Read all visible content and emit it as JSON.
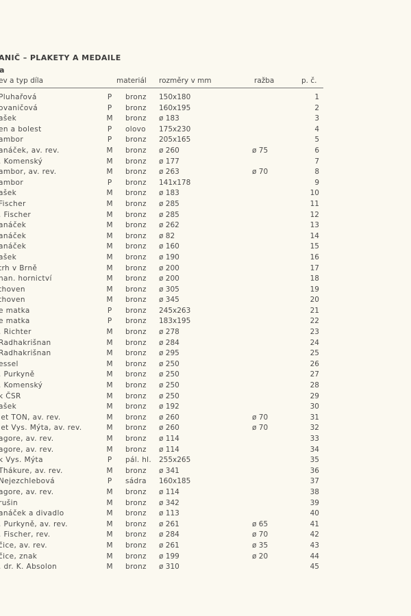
{
  "title": "ANIČ – PLAKETY A MEDAILE",
  "subtitle": "a",
  "header": {
    "name": "ev a typ díla",
    "material": "materiál",
    "dimensions": "rozměry v mm",
    "razba": "ražba",
    "number": "p. č."
  },
  "rows": [
    [
      "Pluhařová",
      "P",
      "bronz",
      "150x180",
      "",
      "1"
    ],
    [
      "ovaničová",
      "P",
      "bronz",
      "160x195",
      "",
      "2"
    ],
    [
      "ašek",
      "M",
      "bronz",
      "ø 183",
      "",
      "3"
    ],
    [
      "en a bolest",
      "P",
      "olovo",
      "175x230",
      "",
      "4"
    ],
    [
      "ambor",
      "P",
      "bronz",
      "205x165",
      "",
      "5"
    ],
    [
      "anáček, av. rev.",
      "M",
      "bronz",
      "ø 260",
      "ø 75",
      "6"
    ],
    [
      ". Komenský",
      "M",
      "bronz",
      "ø 177",
      "",
      "7"
    ],
    [
      "ambor, av. rev.",
      "M",
      "bronz",
      "ø 263",
      "ø 70",
      "8"
    ],
    [
      "ambor",
      "P",
      "bronz",
      "141x178",
      "",
      "9"
    ],
    [
      "ašek",
      "M",
      "bronz",
      "ø 183",
      "",
      "10"
    ],
    [
      " Fischer",
      "M",
      "bronz",
      "ø 285",
      "",
      "11"
    ],
    [
      ". Fischer",
      "M",
      "bronz",
      "ø 285",
      "",
      "12"
    ],
    [
      "anáček",
      "M",
      "bronz",
      "ø 262",
      "",
      "13"
    ],
    [
      "anáček",
      "M",
      "bronz",
      "ø 82",
      "",
      "14"
    ],
    [
      "anáček",
      "M",
      "bronz",
      "ø 160",
      "",
      "15"
    ],
    [
      "ašek",
      "M",
      "bronz",
      "ø 190",
      "",
      "16"
    ],
    [
      "trh v Brně",
      "M",
      "bronz",
      "ø 200",
      "",
      "17"
    ],
    [
      "han. hornictví",
      "M",
      "bronz",
      "ø 200",
      "",
      "18"
    ],
    [
      "thoven",
      "M",
      "bronz",
      "ø 305",
      "",
      "19"
    ],
    [
      "thoven",
      "M",
      "bronz",
      "ø 345",
      "",
      "20"
    ],
    [
      "e matka",
      "P",
      "bronz",
      "245x263",
      "",
      "21"
    ],
    [
      "e matka",
      "P",
      "bronz",
      "183x195",
      "",
      "22"
    ],
    [
      ". Richter",
      "M",
      "bronz",
      "ø 278",
      "",
      "23"
    ],
    [
      "Radhakrišnan",
      "M",
      "bronz",
      "ø 284",
      "",
      "24"
    ],
    [
      "Radhakrišnan",
      "M",
      "bronz",
      "ø 295",
      "",
      "25"
    ],
    [
      "essel",
      "M",
      "bronz",
      "ø 250",
      "",
      "26"
    ],
    [
      ". Purkyně",
      "M",
      "bronz",
      "ø 250",
      "",
      "27"
    ],
    [
      ". Komenský",
      "M",
      "bronz",
      "ø 250",
      "",
      "28"
    ],
    [
      "k ČSR",
      "M",
      "bronz",
      "ø 250",
      "",
      "29"
    ],
    [
      "ašek",
      "M",
      "bronz",
      "ø 192",
      "",
      "30"
    ],
    [
      "let TON, av. rev.",
      "M",
      "bronz",
      "ø 260",
      "ø 70",
      "31"
    ],
    [
      "let Vys. Mýta, av. rev.",
      "M",
      "bronz",
      "ø 260",
      "ø 70",
      "32"
    ],
    [
      "agore, av. rev.",
      "M",
      "bronz",
      "ø 114",
      "",
      "33"
    ],
    [
      "agore, av. rev.",
      "M",
      "bronz",
      "ø 114",
      "",
      "34"
    ],
    [
      "k Vys. Mýta",
      "P",
      "pál. hl.",
      "255x265",
      "",
      "35"
    ],
    [
      "Thákure, av. rev.",
      "M",
      "bronz",
      "ø 341",
      "",
      "36"
    ],
    [
      "Nejezchlebová",
      "P",
      "sádra",
      "160x185",
      "",
      "37"
    ],
    [
      "agore, av. rev.",
      "M",
      "bronz",
      "ø 114",
      "",
      "38"
    ],
    [
      "rušin",
      "M",
      "bronz",
      "ø 342",
      "",
      "39"
    ],
    [
      "anáček a divadlo",
      "M",
      "bronz",
      "ø 113",
      "",
      "40"
    ],
    [
      ". Purkyně, av. rev.",
      "M",
      "bronz",
      "ø 261",
      "ø 65",
      "41"
    ],
    [
      ". Fischer, rev.",
      "M",
      "bronz",
      "ø 284",
      "ø 70",
      "42"
    ],
    [
      "čice, av. rev.",
      "M",
      "bronz",
      "ø 261",
      "ø 35",
      "43"
    ],
    [
      "čice, znak",
      "M",
      "bronz",
      "ø 199",
      "ø 20",
      "44"
    ],
    [
      ". dr. K. Absolon",
      "M",
      "bronz",
      "ø 310",
      "",
      "45"
    ]
  ]
}
